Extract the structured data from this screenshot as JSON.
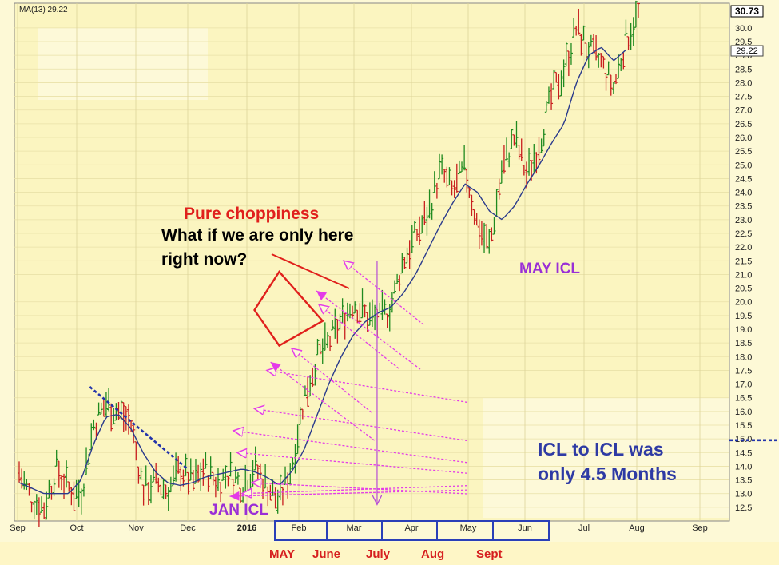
{
  "legend": "MA(13) 29.22",
  "chart_data": {
    "type": "bar",
    "title": "",
    "x_tick_labels": [
      "Sep",
      "Oct",
      "Nov",
      "Dec",
      "2016",
      "Feb",
      "Mar",
      "Apr",
      "May",
      "Jun",
      "Jul",
      "Aug",
      "Sep"
    ],
    "y_ticks": [
      12.5,
      13.0,
      13.5,
      14.0,
      14.5,
      15.0,
      15.5,
      16.0,
      16.5,
      17.0,
      17.5,
      18.0,
      18.5,
      19.0,
      19.5,
      20.0,
      20.5,
      21.0,
      21.5,
      22.0,
      22.5,
      23.0,
      23.5,
      24.0,
      24.5,
      25.0,
      25.5,
      26.0,
      26.5,
      27.0,
      27.5,
      28.0,
      28.5,
      29.0,
      29.5,
      30.0
    ],
    "ylim": [
      12.0,
      30.9
    ],
    "last_price": "30.73",
    "ma_value": "29.22",
    "series": [
      {
        "name": "MA(13)",
        "type": "line",
        "anchors": [
          [
            0,
            13.4
          ],
          [
            2,
            13.0
          ],
          [
            4,
            13.0
          ],
          [
            5,
            13.5
          ],
          [
            6,
            14.8
          ],
          [
            7,
            15.8
          ],
          [
            8,
            15.9
          ],
          [
            9,
            15.4
          ],
          [
            10,
            14.5
          ],
          [
            11,
            13.8
          ],
          [
            12,
            13.4
          ],
          [
            13,
            13.3
          ],
          [
            14,
            13.4
          ],
          [
            15,
            13.6
          ],
          [
            16,
            13.7
          ],
          [
            17,
            13.8
          ],
          [
            18,
            13.9
          ],
          [
            19,
            13.8
          ],
          [
            20,
            13.6
          ],
          [
            21,
            13.3
          ],
          [
            22,
            13.8
          ],
          [
            23,
            14.6
          ],
          [
            24,
            15.8
          ],
          [
            25,
            17.0
          ],
          [
            26,
            18.0
          ],
          [
            27,
            18.8
          ],
          [
            28,
            19.3
          ],
          [
            29,
            19.6
          ],
          [
            30,
            19.8
          ],
          [
            31,
            20.3
          ],
          [
            32,
            21.0
          ],
          [
            33,
            21.9
          ],
          [
            34,
            22.8
          ],
          [
            35,
            23.6
          ],
          [
            36,
            24.3
          ],
          [
            37,
            24.0
          ],
          [
            38,
            23.3
          ],
          [
            39,
            23.0
          ],
          [
            40,
            23.5
          ],
          [
            41,
            24.3
          ],
          [
            42,
            25.0
          ],
          [
            43,
            25.8
          ],
          [
            44,
            26.5
          ],
          [
            45,
            28.0
          ],
          [
            46,
            29.0
          ],
          [
            47,
            29.3
          ],
          [
            48,
            28.8
          ],
          [
            49,
            29.2
          ]
        ]
      },
      {
        "name": "price",
        "type": "ohlc",
        "anchors": [
          [
            0,
            13.8
          ],
          [
            1,
            12.8
          ],
          [
            2,
            12.5
          ],
          [
            3,
            13.9
          ],
          [
            4,
            13.2
          ],
          [
            5,
            13.0
          ],
          [
            6,
            15.5
          ],
          [
            7,
            16.3
          ],
          [
            8,
            16.0
          ],
          [
            9,
            15.6
          ],
          [
            10,
            13.2
          ],
          [
            11,
            13.4
          ],
          [
            12,
            13.1
          ],
          [
            13,
            13.9
          ],
          [
            14,
            13.4
          ],
          [
            15,
            13.9
          ],
          [
            16,
            13.4
          ],
          [
            17,
            13.8
          ],
          [
            18,
            13.3
          ],
          [
            19,
            14.0
          ],
          [
            20,
            13.3
          ],
          [
            21,
            12.7
          ],
          [
            22,
            14.0
          ],
          [
            23,
            16.5
          ],
          [
            24,
            17.9
          ],
          [
            25,
            18.5
          ],
          [
            26,
            19.3
          ],
          [
            27,
            20.0
          ],
          [
            28,
            19.5
          ],
          [
            29,
            19.3
          ],
          [
            30,
            19.8
          ],
          [
            31,
            21.5
          ],
          [
            32,
            22.4
          ],
          [
            33,
            23.2
          ],
          [
            34,
            24.8
          ],
          [
            35,
            24.0
          ],
          [
            36,
            24.9
          ],
          [
            37,
            22.8
          ],
          [
            38,
            22.0
          ],
          [
            39,
            24.9
          ],
          [
            40,
            26.0
          ],
          [
            41,
            24.6
          ],
          [
            42,
            25.8
          ],
          [
            43,
            27.5
          ],
          [
            44,
            28.5
          ],
          [
            45,
            30.0
          ],
          [
            46,
            29.2
          ],
          [
            47,
            28.7
          ],
          [
            48,
            27.8
          ],
          [
            49,
            29.6
          ],
          [
            50,
            30.5
          ]
        ]
      }
    ],
    "trendline": {
      "from": [
        5.7,
        16.9
      ],
      "to": [
        13.6,
        13.9
      ]
    },
    "triangle": [
      [
        19,
        19.7
      ],
      [
        21,
        21.1
      ],
      [
        24.5,
        19.3
      ],
      [
        21,
        18.4
      ]
    ],
    "hollow_arrow_tips": [
      [
        18.8,
        13.4
      ],
      [
        18.0,
        13.0
      ],
      [
        17.6,
        14.5
      ],
      [
        17.3,
        15.3
      ],
      [
        19.0,
        16.1
      ],
      [
        20.0,
        17.5
      ],
      [
        22.0,
        18.3
      ],
      [
        24.2,
        19.9
      ],
      [
        26.2,
        21.5
      ]
    ],
    "filled_arrow_tips": [
      [
        17.0,
        12.9
      ],
      [
        20.3,
        17.8
      ],
      [
        24.0,
        20.4
      ]
    ],
    "vertical_arrow": {
      "x_index": 28.9,
      "from": 21.5,
      "to": 12.6
    }
  },
  "annotations": {
    "pure": "Pure choppiness",
    "what_if_line1": "What if we are only here",
    "what_if_line2": "right now?",
    "may_icl": "MAY ICL",
    "jan_icl": "JAN ICL",
    "icl_line1": "ICL to ICL was",
    "icl_line2": "only  4.5 Months"
  },
  "month_boxes": [
    "MAY",
    "June",
    "July",
    "Aug",
    "Sept"
  ]
}
